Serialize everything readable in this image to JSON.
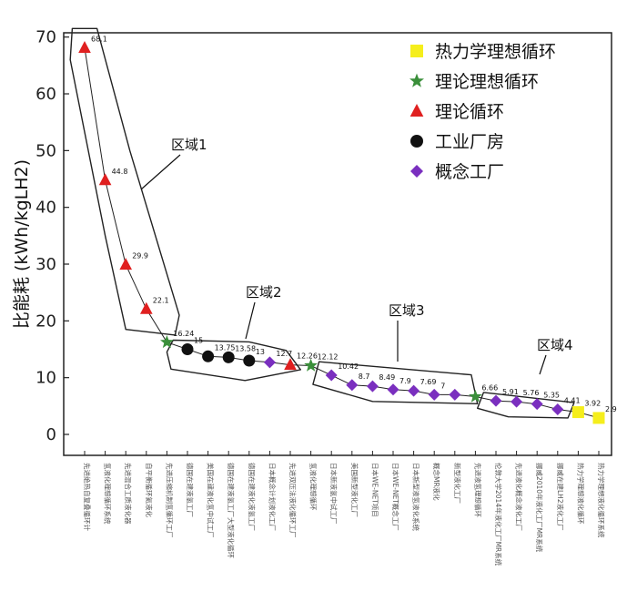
{
  "chart_data": {
    "type": "scatter",
    "ylabel": "比能耗 (kWh/kgLH2)",
    "ylim": [
      0,
      70
    ],
    "yticks": [
      0,
      10,
      20,
      30,
      40,
      50,
      60,
      70
    ],
    "categories": [
      "先进绝热自复叠循环计",
      "氢液化理想循环系统",
      "先进混合工质液化器",
      "自平衡循环氦液化",
      "先进压缩机制氢循环工厂",
      "德国在建液氢工厂",
      "美国在建液化氢中试工厂",
      "德国在建液氢工厂大型液化循环",
      "德国在建液化液氢工厂",
      "日本概念计划液化工厂",
      "先进双压法液化循环工厂",
      "氢液化理想循环",
      "日本新液氢中试工厂",
      "美国新型液化工厂",
      "日本WE-NET项目",
      "日本WE-NET概念工厂",
      "日本新型液氢液化系统",
      "概念MR液化",
      "新型液化工厂",
      "先进液氢理想循环",
      "伦敦大学2014年液化工厂MR系统",
      "先进液化概念液化工厂",
      "挪威2010年液化工厂MR系统",
      "挪威在建LH2液化工厂",
      "热力学理想液化循环",
      "热力学理想液化循环系统"
    ],
    "series": [
      {
        "name": "热力学理想循环",
        "marker": "square",
        "color": "#f5ee1c",
        "points": [
          [
            25,
            3.92
          ],
          [
            26,
            2.9
          ]
        ]
      },
      {
        "name": "理论理想循环",
        "marker": "star",
        "color": "#3a8f3a",
        "points": [
          [
            5,
            16.24
          ],
          [
            12,
            12.12
          ],
          [
            20,
            6.66
          ]
        ]
      },
      {
        "name": "理论循环",
        "marker": "triangle",
        "color": "#e02020",
        "points": [
          [
            1,
            68.1
          ],
          [
            2,
            44.8
          ],
          [
            3,
            29.9
          ],
          [
            4,
            22.1
          ],
          [
            11,
            12.26
          ]
        ]
      },
      {
        "name": "工业厂房",
        "marker": "circle",
        "color": "#111111",
        "points": [
          [
            6,
            15
          ],
          [
            7,
            13.75
          ],
          [
            8,
            13.58
          ],
          [
            9,
            13
          ]
        ]
      },
      {
        "name": "概念工厂",
        "marker": "diamond",
        "color": "#7a2fbf",
        "points": [
          [
            10,
            12.7
          ],
          [
            13,
            10.42
          ],
          [
            14,
            8.7
          ],
          [
            15,
            8.49
          ],
          [
            16,
            7.9
          ],
          [
            17,
            7.69
          ],
          [
            18,
            7
          ],
          [
            19,
            7
          ],
          [
            21,
            5.91
          ],
          [
            22,
            5.76
          ],
          [
            23,
            5.35
          ],
          [
            24,
            4.41
          ]
        ]
      }
    ],
    "data_labels": [
      {
        "x": 1,
        "y": 68.1,
        "text": "68.1"
      },
      {
        "x": 2,
        "y": 44.8,
        "text": "44.8"
      },
      {
        "x": 3,
        "y": 29.9,
        "text": "29.9"
      },
      {
        "x": 4,
        "y": 22.1,
        "text": "22.1"
      },
      {
        "x": 5,
        "y": 16.24,
        "text": "16.24"
      },
      {
        "x": 6,
        "y": 15,
        "text": "15"
      },
      {
        "x": 7,
        "y": 13.75,
        "text": "13.75"
      },
      {
        "x": 8,
        "y": 13.58,
        "text": "13.58"
      },
      {
        "x": 9,
        "y": 13,
        "text": "13"
      },
      {
        "x": 10,
        "y": 12.7,
        "text": "12.7"
      },
      {
        "x": 11,
        "y": 12.26,
        "text": "12.26"
      },
      {
        "x": 12,
        "y": 12.12,
        "text": "12.12"
      },
      {
        "x": 13,
        "y": 10.42,
        "text": "10.42"
      },
      {
        "x": 14,
        "y": 8.7,
        "text": "8.7"
      },
      {
        "x": 15,
        "y": 8.49,
        "text": "8.49"
      },
      {
        "x": 16,
        "y": 7.9,
        "text": "7.9"
      },
      {
        "x": 17,
        "y": 7.69,
        "text": "7.69"
      },
      {
        "x": 18,
        "y": 7,
        "text": "7"
      },
      {
        "x": 20,
        "y": 6.66,
        "text": "6.66"
      },
      {
        "x": 21,
        "y": 5.91,
        "text": "5.91"
      },
      {
        "x": 22,
        "y": 5.76,
        "text": "5.76"
      },
      {
        "x": 23,
        "y": 5.35,
        "text": "5.35"
      },
      {
        "x": 24,
        "y": 4.41,
        "text": "4.41"
      },
      {
        "x": 25,
        "y": 3.92,
        "text": "3.92"
      },
      {
        "x": 26,
        "y": 2.9,
        "text": "2.9"
      }
    ],
    "regions": [
      "区域1",
      "区域2",
      "区域3",
      "区域4"
    ],
    "grid": false,
    "legend_position": "top-right"
  }
}
